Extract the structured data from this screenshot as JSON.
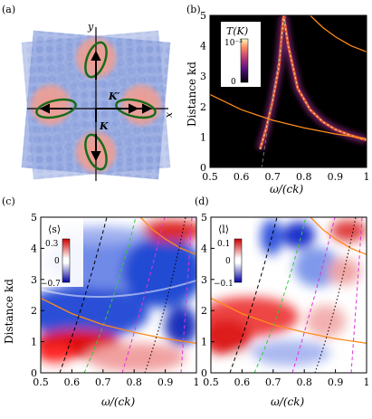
{
  "panels": {
    "a": {
      "label": "(a)",
      "axis_x": "x",
      "axis_y": "y",
      "vec_kp": "K′",
      "vec_k": "K"
    },
    "b": {
      "label": "(b)",
      "colorbar_title": "T(K)",
      "colorbar_max": "10⁻³",
      "colorbar_min": "0"
    },
    "c": {
      "label": "(c)",
      "colorbar_title": "⟨s⟩",
      "colorbar_max": "0.3",
      "colorbar_mid": "0",
      "colorbar_min": "−0.7"
    },
    "d": {
      "label": "(d)",
      "colorbar_title": "⟨l⟩",
      "colorbar_max": "0.1",
      "colorbar_mid": "0",
      "colorbar_min": "−0.1"
    }
  },
  "colors": {
    "orange": "#ff8c1a",
    "green": "#33cc33",
    "magenta": "#dd33dd",
    "dark_moire": "#1a6b1a",
    "bg_b": "#000000",
    "pos": "#dd1111",
    "neg": "#1133cc"
  },
  "chart_data": [
    {
      "panel": "b",
      "type": "heatmap",
      "xlabel": "ω/(ck)",
      "ylabel": "Distance kd",
      "xlim": [
        0.5,
        1.0
      ],
      "ylim": [
        0,
        5
      ],
      "xticks": [
        "0.5",
        "0.6",
        "0.7",
        "0.8",
        "0.9",
        "1"
      ],
      "yticks": [
        "0",
        "1",
        "2",
        "3",
        "4",
        "5"
      ],
      "resonance_curve": {
        "x": [
          0.66,
          0.68,
          0.7,
          0.72,
          0.735,
          0.75,
          0.78,
          0.82,
          0.86,
          0.9,
          0.95,
          1.0
        ],
        "y": [
          0.6,
          1.3,
          2.2,
          3.3,
          5.0,
          4.0,
          2.6,
          1.9,
          1.5,
          1.25,
          1.05,
          0.9
        ]
      },
      "orange_curves": [
        {
          "x": [
            0.5,
            0.6,
            0.7,
            0.8,
            0.9,
            1.0
          ],
          "y": [
            2.4,
            1.9,
            1.55,
            1.3,
            1.1,
            0.95
          ]
        },
        {
          "x": [
            0.82,
            0.86,
            0.9,
            0.95,
            1.0
          ],
          "y": [
            5.0,
            4.6,
            4.3,
            4.0,
            3.8
          ]
        }
      ]
    },
    {
      "panel": "c",
      "type": "heatmap",
      "xlabel": "ω/(ck)",
      "ylabel": "Distance kd",
      "xlim": [
        0.5,
        1.0
      ],
      "ylim": [
        0,
        5
      ],
      "xticks": [
        "0.5",
        "0.6",
        "0.7",
        "0.8",
        "0.9",
        "1"
      ],
      "yticks": [
        "0",
        "1",
        "2",
        "3",
        "4",
        "5"
      ]
    },
    {
      "panel": "d",
      "type": "heatmap",
      "xlabel": "ω/(ck)",
      "xlim": [
        0.5,
        1.0
      ],
      "ylim": [
        0,
        5
      ],
      "xticks": [
        "0.5",
        "0.6",
        "0.7",
        "0.8",
        "0.9",
        "1"
      ],
      "yticks": [
        "0",
        "1",
        "2",
        "3",
        "4",
        "5"
      ]
    }
  ]
}
